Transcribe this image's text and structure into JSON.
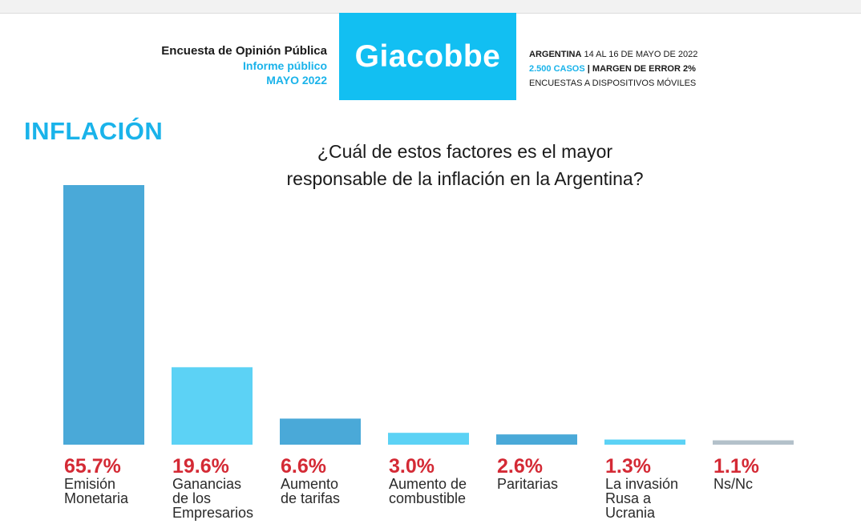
{
  "header": {
    "survey_title": "Encuesta de Opinión Pública",
    "report_type": "Informe público",
    "report_date": "MAYO 2022",
    "brand": "Giacobbe",
    "country": "ARGENTINA",
    "field_dates": "14 AL 16 DE MAYO DE 2022",
    "cases": "2.500 CASOS",
    "separator": "|",
    "margin": "MARGEN DE ERROR 2%",
    "method": "ENCUESTAS A DISPOSITIVOS MÓVILES"
  },
  "colors": {
    "brand": "#12bff2",
    "accent_text": "#1ab3ea",
    "value_red": "#d42a35"
  },
  "section_title": "INFLACIÓN",
  "question_lines": [
    "¿Cuál de estos factores es el mayor",
    "responsable de la inflación en la Argentina?"
  ],
  "chart_data": {
    "type": "bar",
    "title": "",
    "xlabel": "",
    "ylabel": "",
    "ylim": [
      0,
      65.7
    ],
    "grid": false,
    "categories": [
      [
        "Emisión",
        "Monetaria"
      ],
      [
        "Ganancias",
        "de los",
        "Empresarios"
      ],
      [
        "Aumento",
        "de tarifas"
      ],
      [
        "Aumento de",
        "combustible"
      ],
      [
        "Paritarias"
      ],
      [
        "La invasión",
        "Rusa a",
        "Ucrania"
      ],
      [
        "Ns/Nc"
      ]
    ],
    "values": [
      65.7,
      19.6,
      6.6,
      3.0,
      2.6,
      1.3,
      1.1
    ],
    "value_labels": [
      "65.7%",
      "19.6%",
      "6.6%",
      "3.0%",
      "2.6%",
      "1.3%",
      "1.1%"
    ],
    "bar_colors": [
      "#4aa9d8",
      "#5cd2f5",
      "#4aa9d8",
      "#5cd2f5",
      "#4aa9d8",
      "#5cd2f5",
      "#b3c1ca"
    ]
  }
}
